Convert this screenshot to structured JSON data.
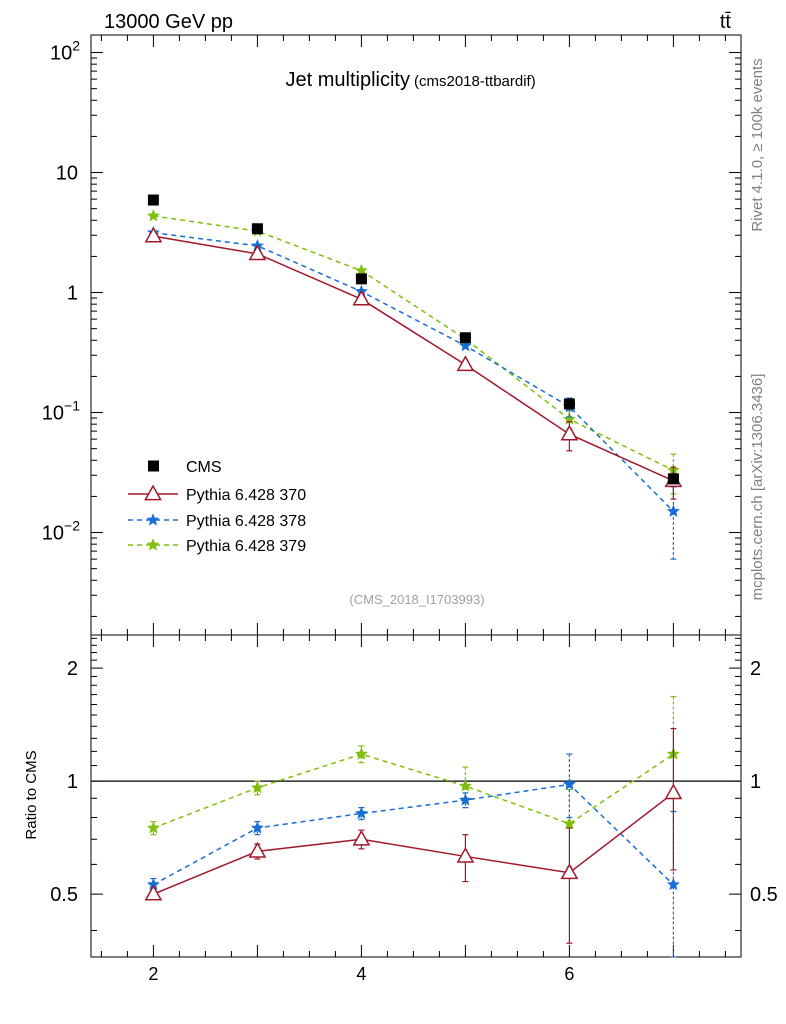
{
  "header": {
    "energy_label": "13000 GeV pp",
    "process_label": "tt̄"
  },
  "side_labels": {
    "rivet": "Rivet 4.1.0, ≥ 100k events",
    "mcplots": "mcplots.cern.ch [arXiv:1306.3436]"
  },
  "chart_data": {
    "type": "line",
    "title": "Jet multiplicity",
    "subtitle": "(cms2018-ttbardif)",
    "analysis_label": "(CMS_2018_I1703993)",
    "x": [
      2,
      3,
      4,
      5,
      6,
      7
    ],
    "xlim": [
      1.4,
      7.65
    ],
    "x_ticks": [
      "2",
      "4",
      "6"
    ],
    "top_panel": {
      "yscale": "log",
      "ylim": [
        0.0014,
        140
      ],
      "y_ticks": [
        {
          "base": "10",
          "exp": "2"
        },
        {
          "base": "10",
          "exp": ""
        },
        {
          "base": "1",
          "exp": ""
        },
        {
          "base": "10",
          "exp": "−1"
        },
        {
          "base": "10",
          "exp": "−2"
        }
      ],
      "data": {
        "name": "CMS",
        "marker": "square",
        "color": "#000000",
        "values": [
          5.9,
          3.4,
          1.3,
          0.42,
          0.118,
          0.028
        ]
      },
      "series": [
        {
          "name": "Pythia 6.428 370",
          "color": "#a0182a",
          "dash": "",
          "marker": "triangle",
          "values": [
            2.95,
            2.1,
            0.88,
            0.25,
            0.066,
            0.027
          ],
          "err": [
            0.03,
            0.03,
            0.02,
            0.01,
            0.018,
            0.008
          ]
        },
        {
          "name": "Pythia 6.428 378",
          "color": "#1a6fd6",
          "dash": "5,4",
          "marker": "star",
          "values": [
            3.15,
            2.45,
            1.02,
            0.36,
            0.112,
            0.015
          ],
          "err": [
            0.03,
            0.03,
            0.02,
            0.01,
            0.02,
            0.009
          ]
        },
        {
          "name": "Pythia 6.428 379",
          "color": "#7fbf0f",
          "dash": "5,4",
          "marker": "star",
          "values": [
            4.35,
            3.25,
            1.52,
            0.41,
            0.088,
            0.033
          ],
          "err": [
            0.04,
            0.04,
            0.03,
            0.01,
            0.015,
            0.012
          ]
        }
      ]
    },
    "ratio_panel": {
      "ylabel": "Ratio to CMS",
      "ylim": [
        0.34,
        2.45
      ],
      "y_ticks": [
        "2",
        "1",
        "0.5"
      ],
      "reference": 1,
      "series": [
        {
          "name": "Pythia 6.428 370",
          "values": [
            0.5,
            0.65,
            0.7,
            0.63,
            0.57,
            0.93
          ],
          "err_lo": [
            0.01,
            0.03,
            0.04,
            0.09,
            0.2,
            0.35
          ],
          "err_hi": [
            0.01,
            0.03,
            0.04,
            0.09,
            0.18,
            0.45
          ]
        },
        {
          "name": "Pythia 6.428 378",
          "values": [
            0.53,
            0.75,
            0.82,
            0.89,
            0.98,
            0.53
          ],
          "err_lo": [
            0.02,
            0.03,
            0.03,
            0.04,
            0.18,
            0.2
          ],
          "err_hi": [
            0.02,
            0.03,
            0.03,
            0.04,
            0.2,
            0.3
          ]
        },
        {
          "name": "Pythia 6.428 379",
          "values": [
            0.75,
            0.96,
            1.18,
            0.97,
            0.77,
            1.18
          ],
          "err_lo": [
            0.03,
            0.04,
            0.06,
            0.12,
            0.18,
            0.35
          ],
          "err_hi": [
            0.03,
            0.04,
            0.06,
            0.12,
            0.18,
            0.5
          ]
        }
      ]
    }
  }
}
